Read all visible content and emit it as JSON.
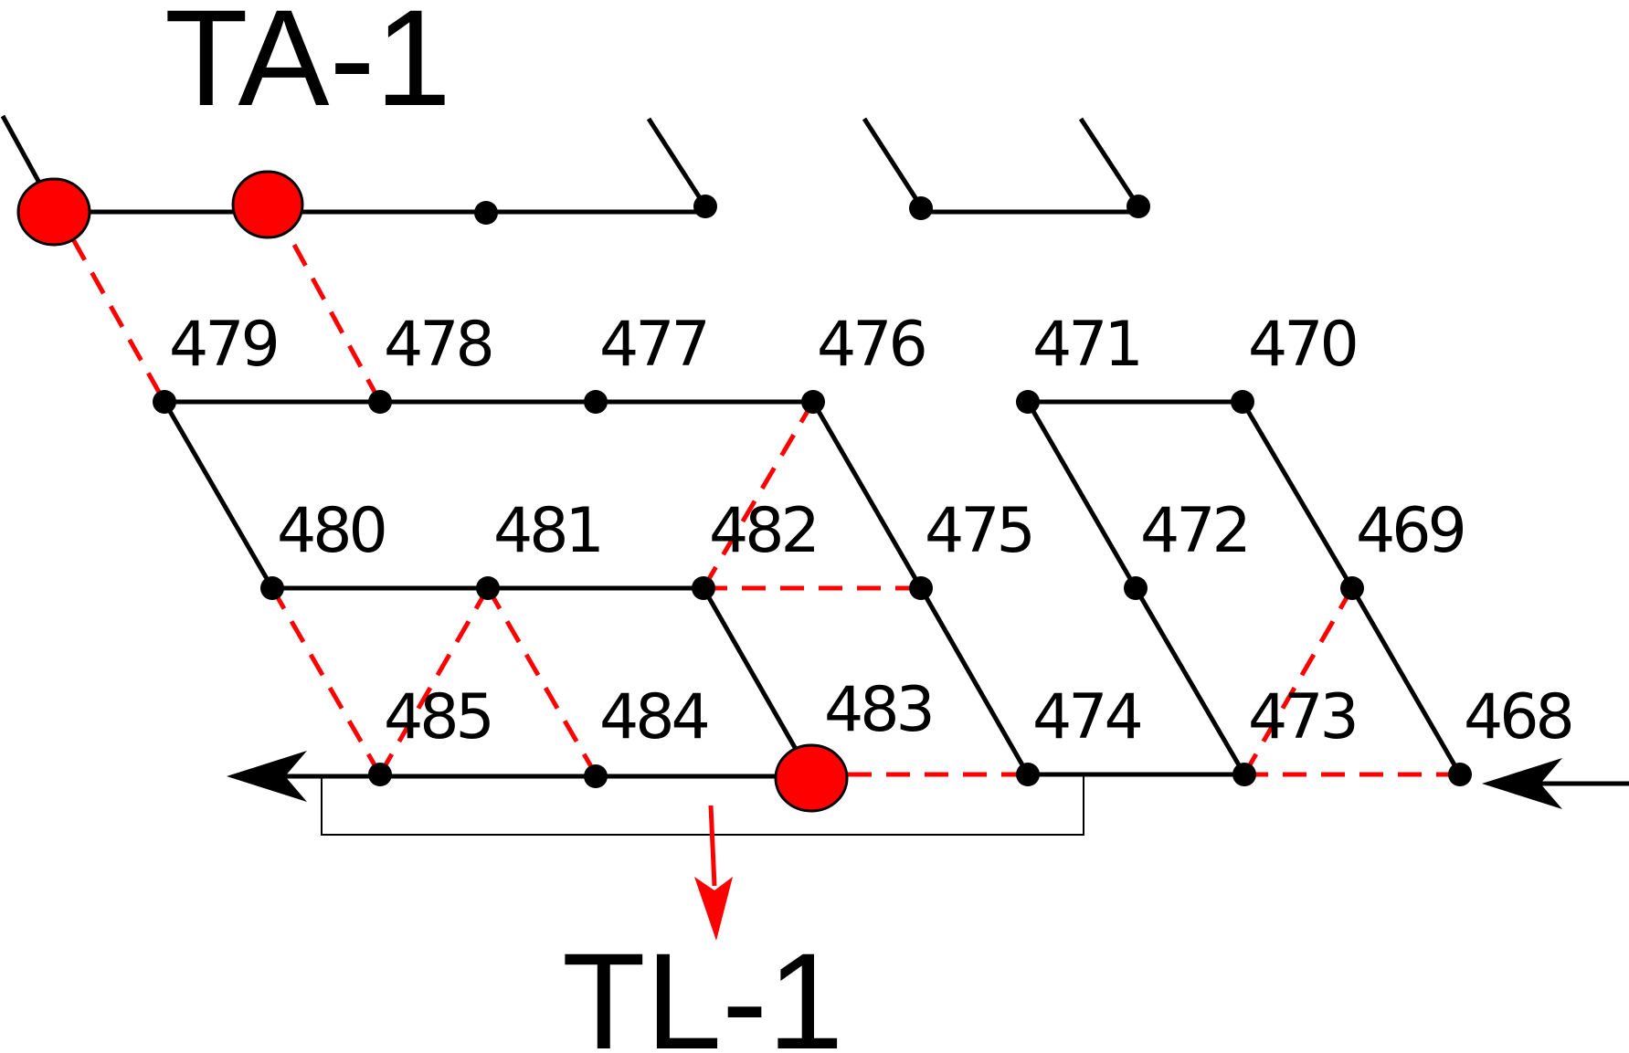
{
  "titles": {
    "top": "TA-1",
    "bottom": "TL-1"
  },
  "colors": {
    "line": "#000000",
    "dashed": "#ff0000",
    "highlight_node": "#ff0000",
    "background": "#ffffff"
  },
  "node_labels": {
    "n479": "479",
    "n478": "478",
    "n477": "477",
    "n476": "476",
    "n471": "471",
    "n470": "470",
    "n480": "480",
    "n481": "481",
    "n482": "482",
    "n475": "475",
    "n472": "472",
    "n469": "469",
    "n485": "485",
    "n484": "484",
    "n483": "483",
    "n474": "474",
    "n473": "473",
    "n468": "468"
  },
  "highlighted_nodes": [
    "483"
  ],
  "dashed_connections": [
    [
      "TA-1 node 1",
      "479"
    ],
    [
      "TA-1 node 2",
      "478"
    ],
    [
      "476",
      "482"
    ],
    [
      "482",
      "475"
    ],
    [
      "480",
      "485"
    ],
    [
      "481",
      "485"
    ],
    [
      "481",
      "484"
    ],
    [
      "483",
      "474"
    ],
    [
      "469",
      "473"
    ],
    [
      "473",
      "468"
    ]
  ],
  "solid_connections": [
    [
      "479",
      "478"
    ],
    [
      "478",
      "477"
    ],
    [
      "477",
      "476"
    ],
    [
      "471",
      "470"
    ],
    [
      "479",
      "480"
    ],
    [
      "476",
      "475"
    ],
    [
      "471",
      "472"
    ],
    [
      "470",
      "469"
    ],
    [
      "480",
      "481"
    ],
    [
      "481",
      "482"
    ],
    [
      "482",
      "483"
    ],
    [
      "475",
      "474"
    ],
    [
      "472",
      "473"
    ],
    [
      "469",
      "468"
    ],
    [
      "485",
      "484"
    ],
    [
      "484",
      "483"
    ],
    [
      "474",
      "473"
    ]
  ],
  "flow_arrows": {
    "input": "468",
    "output": "485",
    "down": "TL-1"
  }
}
